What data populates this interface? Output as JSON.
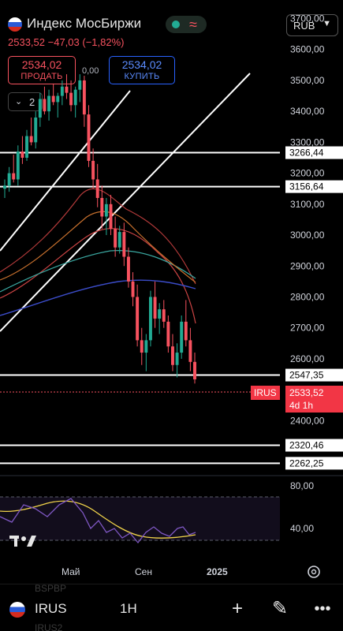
{
  "header": {
    "title": "Индекс МосБиржи",
    "price": "2533,52",
    "change": "−47,03",
    "change_pct": "(−1,82%)",
    "currency": "RUB",
    "sell": {
      "value": "2534,02",
      "label": "ПРОДАТЬ"
    },
    "buy": {
      "value": "2534,02",
      "label": "КУПИТЬ"
    },
    "spread": "0,00",
    "indicators_count": "2",
    "status_icon": "wave-icon",
    "up_color": "#22ab94",
    "down_color": "#f7525f"
  },
  "price_axis": {
    "ticks": [
      "3700,00",
      "3600,00",
      "3500,00",
      "3400,00",
      "3300,00",
      "3200,00",
      "3100,00",
      "3000,00",
      "2900,00",
      "2800,00",
      "2700,00",
      "2600,00",
      "2500,00",
      "2400,00"
    ],
    "hline_labels": [
      "3266,44",
      "3156,64",
      "2547,35",
      "2320,46",
      "2262,25"
    ],
    "last_price": "2533,52",
    "countdown": "4d 1h",
    "symbol_tag": "IRUS"
  },
  "oscillator_axis": {
    "ticks": [
      "80,00",
      "40,00"
    ]
  },
  "time_axis": {
    "labels": [
      "Май",
      "Сен",
      "2025"
    ]
  },
  "bottom": {
    "symbol": "IRUS",
    "interval": "1H",
    "ghost_top": "BSPBP",
    "ghost_bottom": "IRUS2"
  },
  "chart_data": {
    "type": "candlestick",
    "y_range": [
      2230,
      3760
    ],
    "horizontal_levels": [
      3266.44,
      3156.64,
      2547.35,
      2320.46,
      2262.25
    ],
    "last_price": 2533.52,
    "candles": [
      [
        3150,
        3180,
        3120,
        3160
      ],
      [
        3160,
        3220,
        3140,
        3200
      ],
      [
        3200,
        3260,
        3170,
        3180
      ],
      [
        3180,
        3290,
        3160,
        3270
      ],
      [
        3270,
        3320,
        3230,
        3250
      ],
      [
        3250,
        3340,
        3240,
        3320
      ],
      [
        3320,
        3380,
        3290,
        3300
      ],
      [
        3300,
        3400,
        3280,
        3380
      ],
      [
        3380,
        3460,
        3350,
        3440
      ],
      [
        3440,
        3480,
        3390,
        3400
      ],
      [
        3400,
        3470,
        3370,
        3450
      ],
      [
        3450,
        3490,
        3420,
        3430
      ],
      [
        3430,
        3460,
        3380,
        3450
      ],
      [
        3450,
        3500,
        3420,
        3480
      ],
      [
        3480,
        3520,
        3440,
        3460
      ],
      [
        3460,
        3500,
        3400,
        3420
      ],
      [
        3420,
        3480,
        3380,
        3470
      ],
      [
        3470,
        3520,
        3430,
        3500
      ],
      [
        3500,
        3515,
        3350,
        3390
      ],
      [
        3390,
        3420,
        3220,
        3240
      ],
      [
        3240,
        3280,
        3150,
        3180
      ],
      [
        3180,
        3230,
        3090,
        3120
      ],
      [
        3120,
        3160,
        3020,
        3060
      ],
      [
        3060,
        3120,
        3000,
        3100
      ],
      [
        3100,
        3130,
        3000,
        3020
      ],
      [
        3020,
        3060,
        2930,
        2960
      ],
      [
        2960,
        3030,
        2940,
        3010
      ],
      [
        3010,
        3040,
        2900,
        2930
      ],
      [
        2930,
        2960,
        2830,
        2850
      ],
      [
        2850,
        2880,
        2770,
        2800
      ],
      [
        2800,
        2840,
        2640,
        2660
      ],
      [
        2660,
        2700,
        2580,
        2620
      ],
      [
        2620,
        2680,
        2560,
        2660
      ],
      [
        2660,
        2820,
        2640,
        2800
      ],
      [
        2800,
        2850,
        2700,
        2730
      ],
      [
        2730,
        2780,
        2680,
        2760
      ],
      [
        2760,
        2790,
        2700,
        2720
      ],
      [
        2720,
        2740,
        2620,
        2640
      ],
      [
        2640,
        2680,
        2560,
        2580
      ],
      [
        2580,
        2650,
        2540,
        2620
      ],
      [
        2620,
        2740,
        2600,
        2720
      ],
      [
        2720,
        2790,
        2640,
        2660
      ],
      [
        2660,
        2700,
        2560,
        2590
      ],
      [
        2590,
        2620,
        2520,
        2533.52
      ]
    ]
  }
}
